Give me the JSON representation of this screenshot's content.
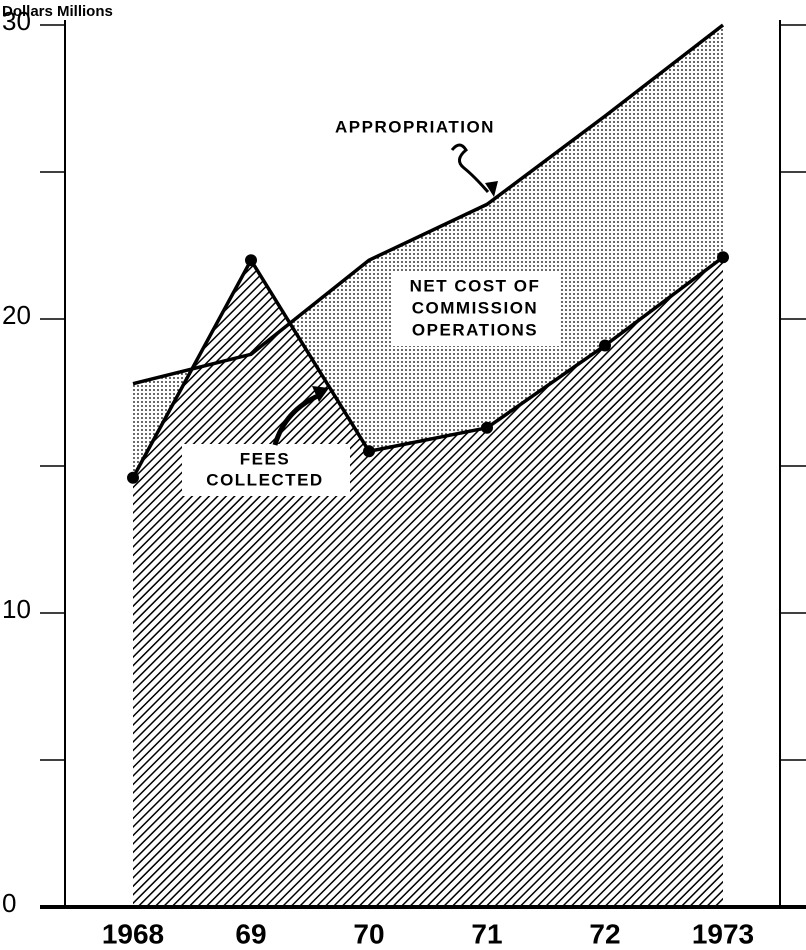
{
  "chart_data": {
    "type": "area",
    "y_label": "Dollars Millions",
    "categories": [
      "1968",
      "69",
      "70",
      "71",
      "72",
      "1973"
    ],
    "series": [
      {
        "name": "APPROPRIATION",
        "color": "#000000",
        "values": [
          17.8,
          18.8,
          22.0,
          23.9,
          26.9,
          30.0
        ]
      },
      {
        "name": "FEES COLLECTED",
        "color": "#000000",
        "values": [
          14.6,
          22.0,
          15.5,
          16.3,
          19.1,
          22.1
        ]
      }
    ],
    "annotations": [
      {
        "lines": [
          "APPROPRIATION"
        ]
      },
      {
        "lines": [
          "NET COST OF",
          "COMMISSION",
          "OPERATIONS"
        ]
      },
      {
        "lines": [
          "FEES",
          "COLLECTED"
        ]
      }
    ],
    "ylim": [
      0,
      30
    ],
    "yticks": [
      0,
      10,
      20,
      30
    ],
    "minor_yticks": [
      5,
      15,
      25
    ],
    "grid": false
  }
}
